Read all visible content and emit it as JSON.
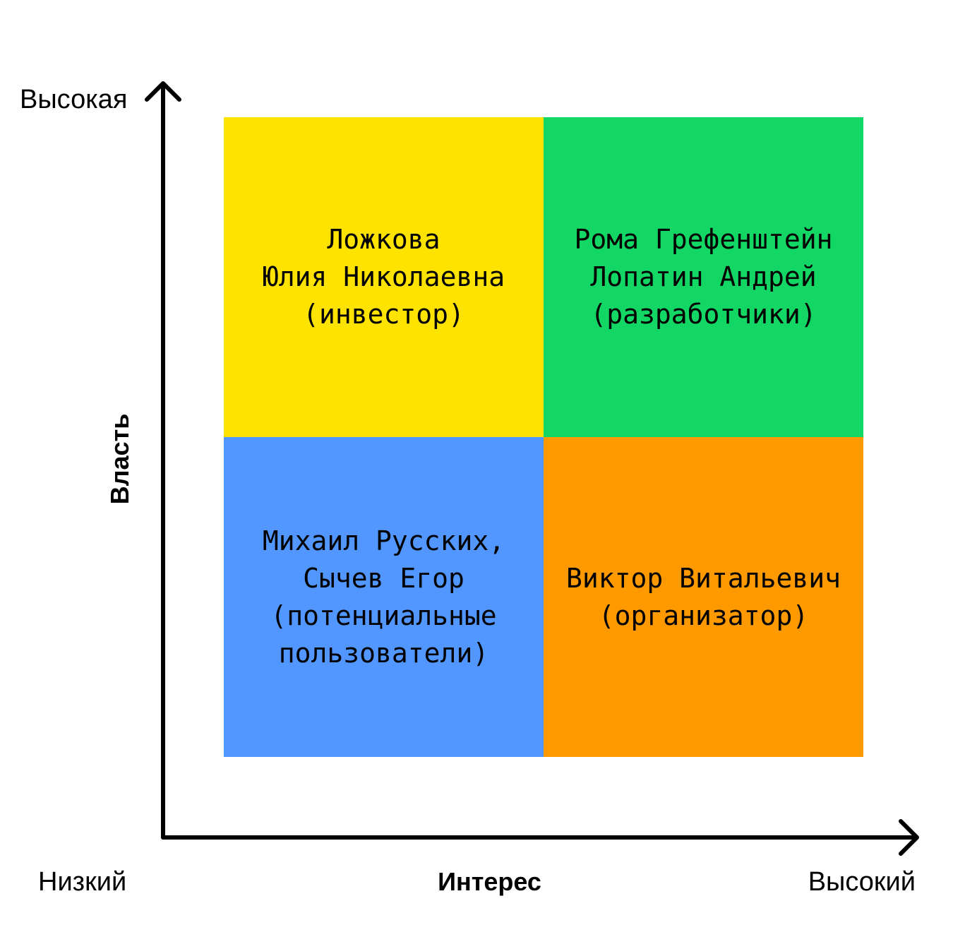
{
  "axes": {
    "y": {
      "title": "Власть",
      "high_label": "Высокая"
    },
    "x": {
      "title": "Интерес",
      "low_label": "Низкий",
      "high_label": "Высокий"
    }
  },
  "quadrants": {
    "top_left": {
      "text": "Ложкова\nЮлия Николаевна\n(инвестор)",
      "color": "#FEE300"
    },
    "top_right": {
      "text": "Рома Грефенштейн\nЛопатин Андрей\n(разработчики)",
      "color": "#13D765"
    },
    "bottom_left": {
      "text": "Михаил Русских,\nСычев Егор\n(потенциальные\nпользователи)",
      "color": "#5296FF"
    },
    "bottom_right": {
      "text": "Виктор Витальевич\n(организатор)",
      "color": "#FE9A00"
    }
  },
  "colors": {
    "axis": "#000000",
    "background": "#FFFFFF"
  }
}
